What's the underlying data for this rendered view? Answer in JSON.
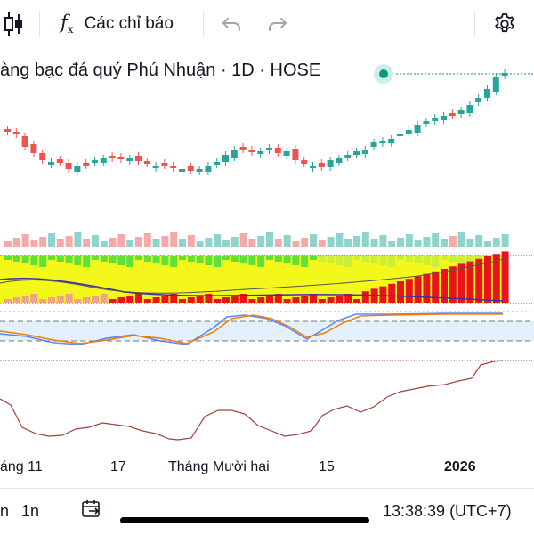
{
  "toolbar": {
    "candle_icon": "candlestick-icon",
    "indicators_label": "Các chỉ báo",
    "undo_icon": "undo-icon",
    "redo_icon": "redo-icon",
    "settings_icon": "gear-icon"
  },
  "symbol": {
    "title": "àng bạc đá quý Phú Nhuận · 1D · HOSE",
    "status_color": "#089981"
  },
  "x_axis": {
    "labels": [
      "áng 11",
      "17",
      "Tháng Mười hai",
      "15",
      "2026"
    ]
  },
  "bottom_bar": {
    "interval_a": "n",
    "interval_b": "1n",
    "goto_icon": "goto-date-icon",
    "time": "13:38:39 (UTC+7)"
  },
  "colors": {
    "up": "#26a69a",
    "down": "#ef5350",
    "vol_up": "#8fd3cd",
    "vol_down": "#f7a9a7"
  }
}
